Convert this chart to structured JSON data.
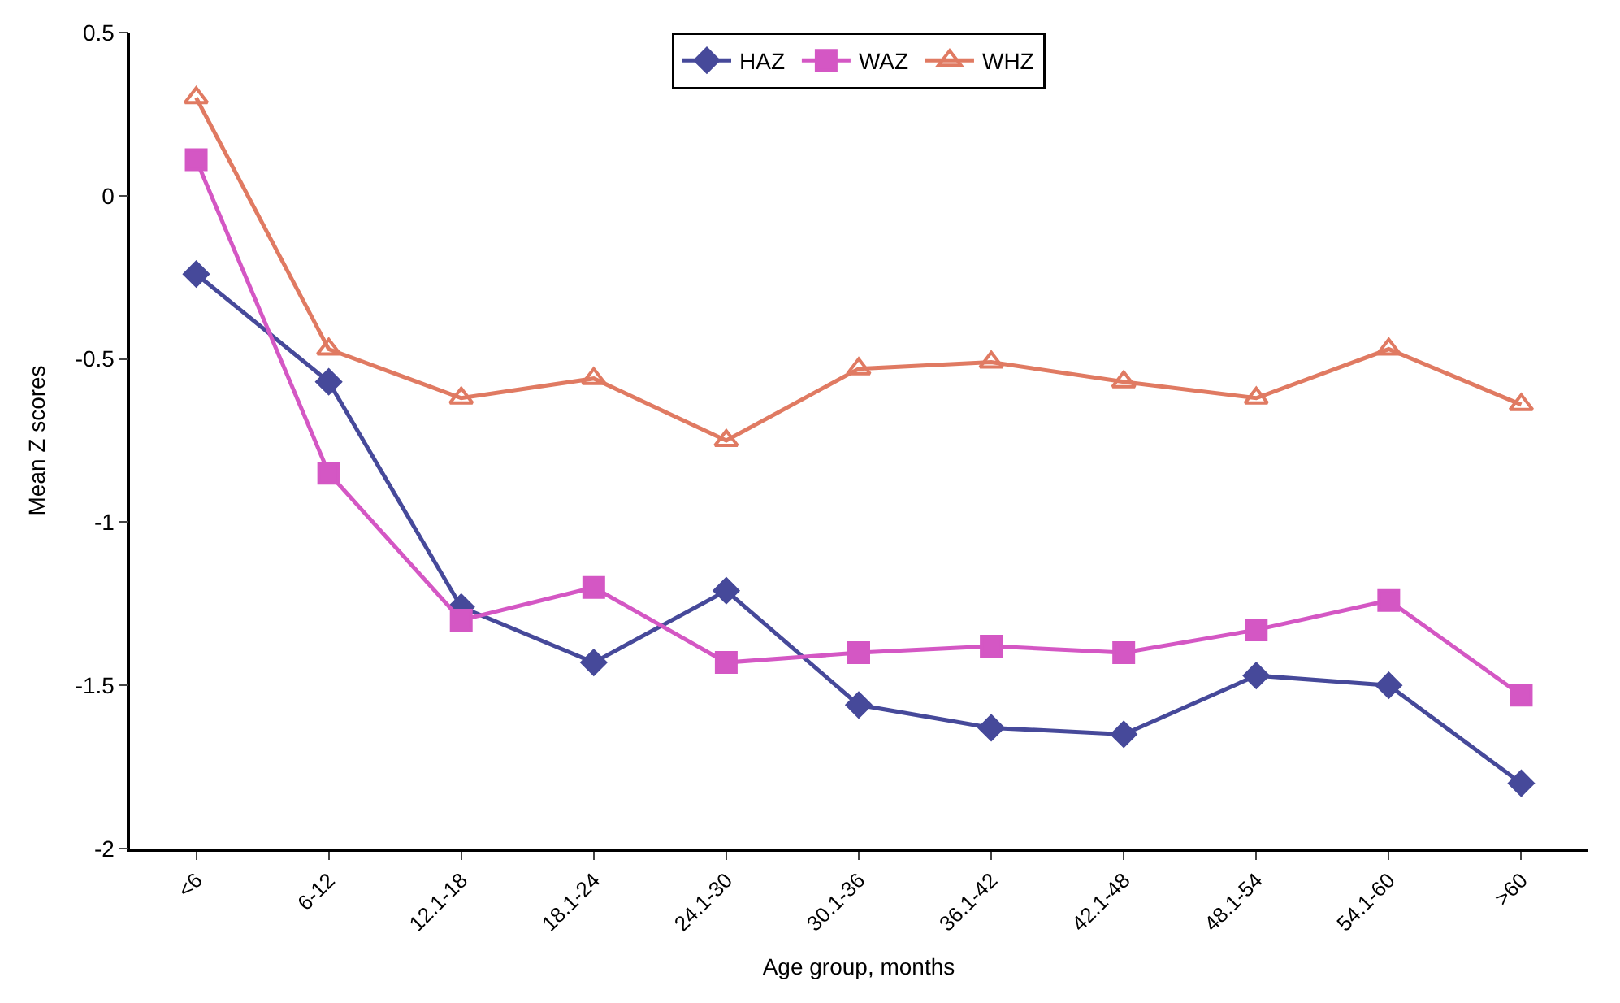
{
  "chart_data": {
    "type": "line",
    "xlabel": "Age group, months",
    "ylabel": "Mean Z scores",
    "categories": [
      "<6",
      "6-12",
      "12.1-18",
      "18.1-24",
      "24.1-30",
      "30.1-36",
      "36.1-42",
      "42.1-48",
      "48.1-54",
      "54.1-60",
      ">60"
    ],
    "series": [
      {
        "name": "HAZ",
        "color": "#46499a",
        "marker": "diamond",
        "values": [
          -0.24,
          -0.57,
          -1.26,
          -1.43,
          -1.21,
          -1.56,
          -1.63,
          -1.65,
          -1.47,
          -1.5,
          -1.8
        ]
      },
      {
        "name": "WAZ",
        "color": "#d457c4",
        "marker": "square",
        "values": [
          0.11,
          -0.85,
          -1.3,
          -1.2,
          -1.43,
          -1.4,
          -1.38,
          -1.4,
          -1.33,
          -1.24,
          -1.53
        ]
      },
      {
        "name": "WHZ",
        "color": "#e07a62",
        "marker": "triangle",
        "values": [
          0.3,
          -0.47,
          -0.62,
          -0.56,
          -0.75,
          -0.53,
          -0.51,
          -0.57,
          -0.62,
          -0.47,
          -0.64
        ]
      }
    ],
    "ylim": [
      -2,
      0.5
    ],
    "yticks": [
      -2,
      -1.5,
      -1,
      -0.5,
      0,
      0.5
    ],
    "legend": "top"
  }
}
